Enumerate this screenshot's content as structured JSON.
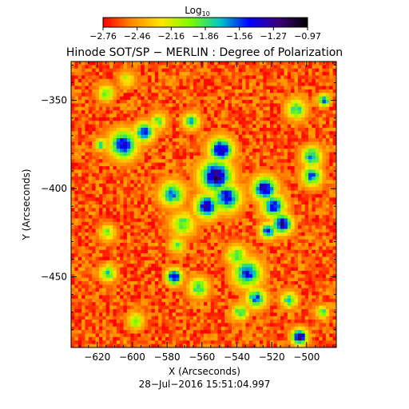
{
  "colorbar": {
    "title_base": "Log",
    "title_sub": "10",
    "tick_labels": [
      "−2.76",
      "−2.46",
      "−2.16",
      "−1.86",
      "−1.56",
      "−1.27",
      "−0.97"
    ],
    "range": [
      -2.76,
      -0.97
    ],
    "colormap": [
      "#ff0000",
      "#ff8c00",
      "#ffe600",
      "#7cfc00",
      "#00c8c8",
      "#0000ff",
      "#3c0078",
      "#000000"
    ]
  },
  "title": "Hinode SOT/SP − MERLIN : Degree of Polarization",
  "timestamp": "28−Jul−2016 15:51:04.997",
  "chart_data": {
    "type": "heatmap",
    "title": "Hinode SOT/SP − MERLIN : Degree of Polarization",
    "xlabel": "X (Arcseconds)",
    "ylabel": "Y (Arcseconds)",
    "xlim": [
      -635,
      -483
    ],
    "ylim": [
      -490,
      -328
    ],
    "x_ticks": [
      -620,
      -600,
      -580,
      -560,
      -540,
      -520,
      -500
    ],
    "x_tick_labels": [
      "−620",
      "−600",
      "−580",
      "−560",
      "−540",
      "−520",
      "−500"
    ],
    "y_ticks": [
      -350,
      -400,
      -450
    ],
    "y_tick_labels": [
      "−350",
      "−400",
      "−450"
    ],
    "value_range": [
      -2.76,
      -0.97
    ],
    "background_level": -2.6,
    "polarized_patches": [
      {
        "x": -605,
        "y": -375,
        "level": -1.4,
        "extent": 7
      },
      {
        "x": -593,
        "y": -368,
        "level": -1.5,
        "extent": 5
      },
      {
        "x": -585,
        "y": -362,
        "level": -1.9,
        "extent": 4
      },
      {
        "x": -566,
        "y": -362,
        "level": -1.7,
        "extent": 4
      },
      {
        "x": -552,
        "y": -393,
        "level": -1.2,
        "extent": 8
      },
      {
        "x": -549,
        "y": -378,
        "level": -1.3,
        "extent": 6
      },
      {
        "x": -546,
        "y": -405,
        "level": -1.4,
        "extent": 7
      },
      {
        "x": -557,
        "y": -410,
        "level": -1.3,
        "extent": 6
      },
      {
        "x": -577,
        "y": -403,
        "level": -1.6,
        "extent": 6
      },
      {
        "x": -571,
        "y": -420,
        "level": -1.9,
        "extent": 6
      },
      {
        "x": -574,
        "y": -432,
        "level": -2.0,
        "extent": 4
      },
      {
        "x": -524,
        "y": -400,
        "level": -1.3,
        "extent": 6
      },
      {
        "x": -519,
        "y": -410,
        "level": -1.5,
        "extent": 6
      },
      {
        "x": -514,
        "y": -420,
        "level": -1.3,
        "extent": 5
      },
      {
        "x": -522,
        "y": -424,
        "level": -1.5,
        "extent": 4
      },
      {
        "x": -506,
        "y": -355,
        "level": -1.8,
        "extent": 5
      },
      {
        "x": -490,
        "y": -350,
        "level": -1.5,
        "extent": 3
      },
      {
        "x": -497,
        "y": -382,
        "level": -1.6,
        "extent": 5
      },
      {
        "x": -497,
        "y": -393,
        "level": -1.6,
        "extent": 5
      },
      {
        "x": -534,
        "y": -448,
        "level": -1.5,
        "extent": 7
      },
      {
        "x": -540,
        "y": -438,
        "level": -1.8,
        "extent": 5
      },
      {
        "x": -529,
        "y": -462,
        "level": -1.6,
        "extent": 5
      },
      {
        "x": -576,
        "y": -450,
        "level": -1.3,
        "extent": 4
      },
      {
        "x": -562,
        "y": -456,
        "level": -1.8,
        "extent": 5
      },
      {
        "x": -538,
        "y": -470,
        "level": -1.8,
        "extent": 4
      },
      {
        "x": -504,
        "y": -484,
        "level": -1.2,
        "extent": 4
      },
      {
        "x": -510,
        "y": -463,
        "level": -1.8,
        "extent": 4
      },
      {
        "x": -491,
        "y": -470,
        "level": -1.8,
        "extent": 3
      },
      {
        "x": -614,
        "y": -425,
        "level": -2.0,
        "extent": 4
      },
      {
        "x": -614,
        "y": -448,
        "level": -1.8,
        "extent": 4
      },
      {
        "x": -598,
        "y": -475,
        "level": -1.9,
        "extent": 4
      },
      {
        "x": -615,
        "y": -346,
        "level": -1.9,
        "extent": 4
      },
      {
        "x": -603,
        "y": -338,
        "level": -2.1,
        "extent": 4
      },
      {
        "x": -618,
        "y": -375,
        "level": -1.8,
        "extent": 3
      }
    ]
  }
}
